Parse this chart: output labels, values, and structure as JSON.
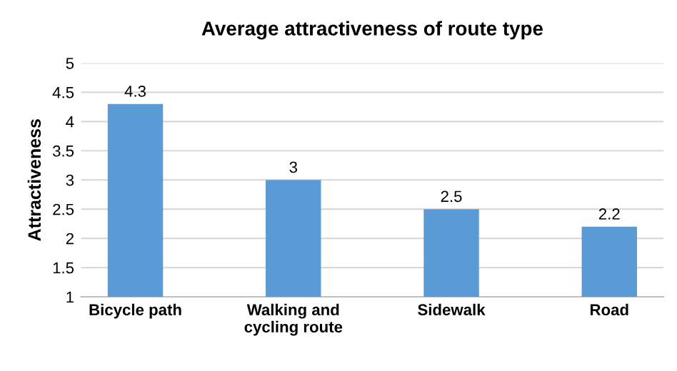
{
  "chart_data": {
    "type": "bar",
    "title": "Average attractiveness of route type",
    "ylabel": "Attractiveness",
    "categories": [
      "Bicycle path",
      "Walking and\ncycling route",
      "Sidewalk",
      "Road"
    ],
    "values": [
      4.3,
      3,
      2.5,
      2.2
    ],
    "color": "#5b9bd5",
    "ylim": [
      1,
      5
    ],
    "yticks": [
      1,
      1.5,
      2,
      2.5,
      3,
      3.5,
      4,
      4.5,
      5
    ],
    "grid": "y",
    "data_labels": true
  }
}
